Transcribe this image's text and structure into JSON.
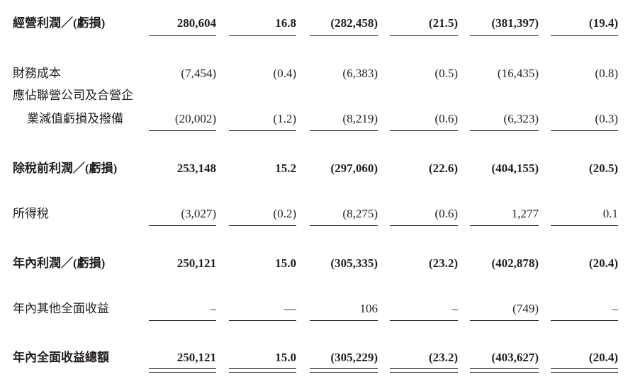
{
  "table": {
    "rows": [
      {
        "label": [
          "經營利潤／(虧損)"
        ],
        "cells": [
          "280,604",
          "16.8",
          "(282,458)",
          "(21.5)",
          "(381,397)",
          "(19.4)"
        ]
      },
      {
        "label": [
          "財務成本"
        ],
        "cells": [
          "(7,454)",
          "(0.4)",
          "(6,383)",
          "(0.5)",
          "(16,435)",
          "(0.8)"
        ]
      },
      {
        "label": [
          "應佔聯營公司及合營企",
          "業減值虧損及撥備"
        ],
        "cells": [
          "(20,002)",
          "(1.2)",
          "(8,219)",
          "(0.6)",
          "(6,323)",
          "(0.3)"
        ]
      },
      {
        "label": [
          "除稅前利潤／(虧損)"
        ],
        "cells": [
          "253,148",
          "15.2",
          "(297,060)",
          "(22.6)",
          "(404,155)",
          "(20.5)"
        ]
      },
      {
        "label": [
          "所得稅"
        ],
        "cells": [
          "(3,027)",
          "(0.2)",
          "(8,275)",
          "(0.6)",
          "1,277",
          "0.1"
        ]
      },
      {
        "label": [
          "年內利潤／(虧損)"
        ],
        "cells": [
          "250,121",
          "15.0",
          "(305,335)",
          "(23.2)",
          "(402,878)",
          "(20.4)"
        ]
      },
      {
        "label": [
          "年內其他全面收益"
        ],
        "cells": [
          "–",
          "—",
          "106",
          "–",
          "(749)",
          "–"
        ]
      },
      {
        "label": [
          "年內全面收益總額"
        ],
        "cells": [
          "250,121",
          "15.0",
          "(305,229)",
          "(23.2)",
          "(403,627)",
          "(20.4)"
        ]
      }
    ]
  }
}
